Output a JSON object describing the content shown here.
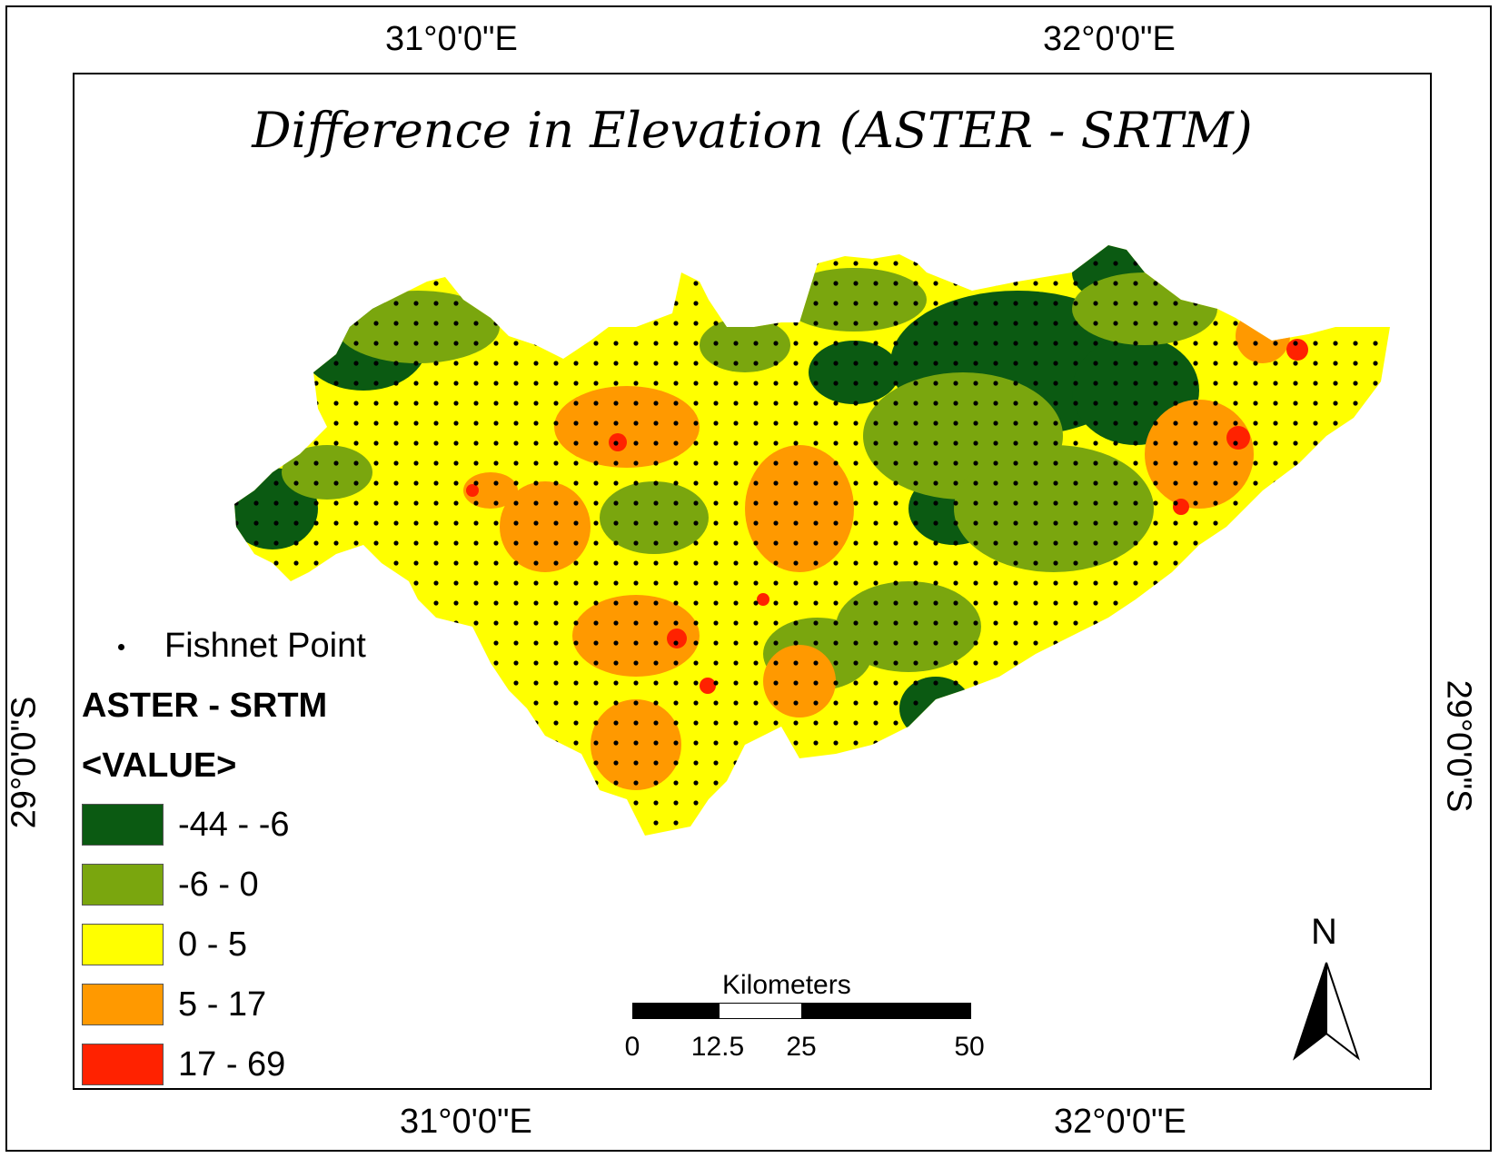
{
  "title": "Difference in Elevation (ASTER - SRTM)",
  "coordinates": {
    "top": [
      "31°0'0\"E",
      "32°0'0\"E"
    ],
    "bottom": [
      "31°0'0\"E",
      "32°0'0\"E"
    ],
    "left": "29°0'0\"S",
    "right": "29°0'0\"S"
  },
  "legend": {
    "point_label": "Fishnet Point",
    "layer_title": "ASTER - SRTM",
    "field": "<VALUE>",
    "classes": [
      {
        "label": "-44 - -6",
        "color": "#0b5a12"
      },
      {
        "label": "-6 - 0",
        "color": "#7aa60e"
      },
      {
        "label": "0 - 5",
        "color": "#ffff00"
      },
      {
        "label": "5 - 17",
        "color": "#ff9900"
      },
      {
        "label": "17 - 69",
        "color": "#ff2200"
      }
    ]
  },
  "scale_bar": {
    "unit": "Kilometers",
    "ticks": [
      "0",
      "12.5",
      "25",
      "50"
    ]
  },
  "north_arrow": {
    "label": "N",
    "icon": "north-arrow-icon"
  }
}
